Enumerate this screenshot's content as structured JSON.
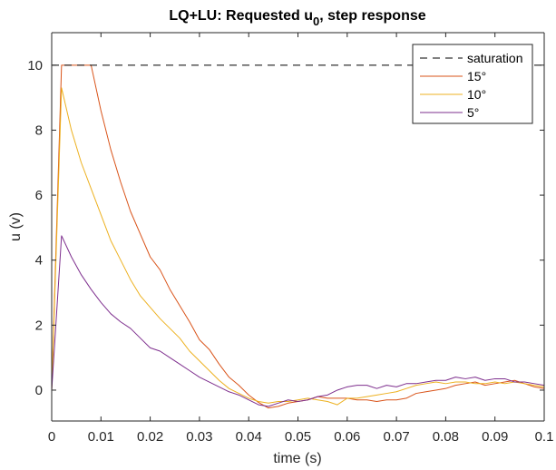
{
  "chart_data": {
    "type": "line",
    "title_main": "LQ+LU: Requested u",
    "title_sub": "0",
    "title_rest": ", step response",
    "xlabel": "time (s)",
    "ylabel": "u (v)",
    "xlim": [
      0,
      0.1
    ],
    "ylim": [
      -0.95,
      11
    ],
    "xticks": [
      "0",
      "0.01",
      "0.02",
      "0.03",
      "0.04",
      "0.05",
      "0.06",
      "0.07",
      "0.08",
      "0.09",
      "0.1"
    ],
    "yticks": [
      "0",
      "2",
      "4",
      "6",
      "8",
      "10"
    ],
    "grid": false,
    "legend_position": "top-right",
    "saturation": {
      "name": "saturation",
      "value": 10,
      "color": "#000000",
      "dash": true
    },
    "series": [
      {
        "name": "15°",
        "color": "#D95319",
        "x": [
          0,
          0.002,
          0.004,
          0.006,
          0.008,
          0.01,
          0.012,
          0.014,
          0.016,
          0.018,
          0.02,
          0.022,
          0.024,
          0.026,
          0.028,
          0.03,
          0.032,
          0.034,
          0.036,
          0.038,
          0.04,
          0.042,
          0.044,
          0.046,
          0.048,
          0.05,
          0.052,
          0.054,
          0.056,
          0.058,
          0.06,
          0.062,
          0.064,
          0.066,
          0.068,
          0.07,
          0.072,
          0.074,
          0.076,
          0.078,
          0.08,
          0.082,
          0.084,
          0.086,
          0.088,
          0.09,
          0.092,
          0.094,
          0.096,
          0.098,
          0.1
        ],
        "y": [
          0,
          10,
          10,
          10,
          10,
          8.6,
          7.4,
          6.4,
          5.5,
          4.8,
          4.1,
          3.7,
          3.1,
          2.6,
          2.1,
          1.55,
          1.25,
          0.8,
          0.4,
          0.15,
          -0.15,
          -0.38,
          -0.55,
          -0.5,
          -0.4,
          -0.35,
          -0.3,
          -0.2,
          -0.25,
          -0.25,
          -0.25,
          -0.3,
          -0.3,
          -0.35,
          -0.3,
          -0.3,
          -0.25,
          -0.1,
          -0.05,
          0,
          0.05,
          0.15,
          0.2,
          0.25,
          0.15,
          0.2,
          0.25,
          0.3,
          0.2,
          0.1,
          0.05
        ]
      },
      {
        "name": "10°",
        "color": "#EDB120",
        "x": [
          0,
          0.002,
          0.004,
          0.006,
          0.008,
          0.01,
          0.012,
          0.014,
          0.016,
          0.018,
          0.02,
          0.022,
          0.024,
          0.026,
          0.028,
          0.03,
          0.032,
          0.034,
          0.036,
          0.038,
          0.04,
          0.042,
          0.044,
          0.046,
          0.048,
          0.05,
          0.052,
          0.054,
          0.056,
          0.058,
          0.06,
          0.062,
          0.064,
          0.066,
          0.068,
          0.07,
          0.072,
          0.074,
          0.076,
          0.078,
          0.08,
          0.082,
          0.084,
          0.086,
          0.088,
          0.09,
          0.092,
          0.094,
          0.096,
          0.098,
          0.1
        ],
        "y": [
          0,
          9.3,
          8.0,
          7.0,
          6.2,
          5.4,
          4.6,
          4.0,
          3.4,
          2.9,
          2.55,
          2.2,
          1.9,
          1.6,
          1.2,
          0.9,
          0.6,
          0.3,
          0.05,
          -0.1,
          -0.25,
          -0.35,
          -0.4,
          -0.35,
          -0.35,
          -0.3,
          -0.25,
          -0.3,
          -0.35,
          -0.45,
          -0.25,
          -0.25,
          -0.2,
          -0.15,
          -0.1,
          -0.05,
          0.05,
          0.15,
          0.2,
          0.25,
          0.2,
          0.25,
          0.25,
          0.2,
          0.2,
          0.25,
          0.2,
          0.25,
          0.2,
          0.15,
          0.1
        ]
      },
      {
        "name": "5°",
        "color": "#7E2F8E",
        "x": [
          0,
          0.002,
          0.004,
          0.006,
          0.008,
          0.01,
          0.012,
          0.014,
          0.016,
          0.018,
          0.02,
          0.022,
          0.024,
          0.026,
          0.028,
          0.03,
          0.032,
          0.034,
          0.036,
          0.038,
          0.04,
          0.042,
          0.044,
          0.046,
          0.048,
          0.05,
          0.052,
          0.054,
          0.056,
          0.058,
          0.06,
          0.062,
          0.064,
          0.066,
          0.068,
          0.07,
          0.072,
          0.074,
          0.076,
          0.078,
          0.08,
          0.082,
          0.084,
          0.086,
          0.088,
          0.09,
          0.092,
          0.094,
          0.096,
          0.098,
          0.1
        ],
        "y": [
          0,
          4.75,
          4.1,
          3.55,
          3.1,
          2.7,
          2.35,
          2.1,
          1.9,
          1.6,
          1.3,
          1.2,
          1.0,
          0.8,
          0.6,
          0.4,
          0.25,
          0.1,
          -0.05,
          -0.15,
          -0.3,
          -0.45,
          -0.5,
          -0.4,
          -0.3,
          -0.35,
          -0.3,
          -0.2,
          -0.15,
          0,
          0.1,
          0.15,
          0.15,
          0.05,
          0.15,
          0.1,
          0.2,
          0.2,
          0.25,
          0.3,
          0.3,
          0.4,
          0.35,
          0.4,
          0.3,
          0.35,
          0.35,
          0.25,
          0.25,
          0.2,
          0.15
        ]
      }
    ]
  }
}
